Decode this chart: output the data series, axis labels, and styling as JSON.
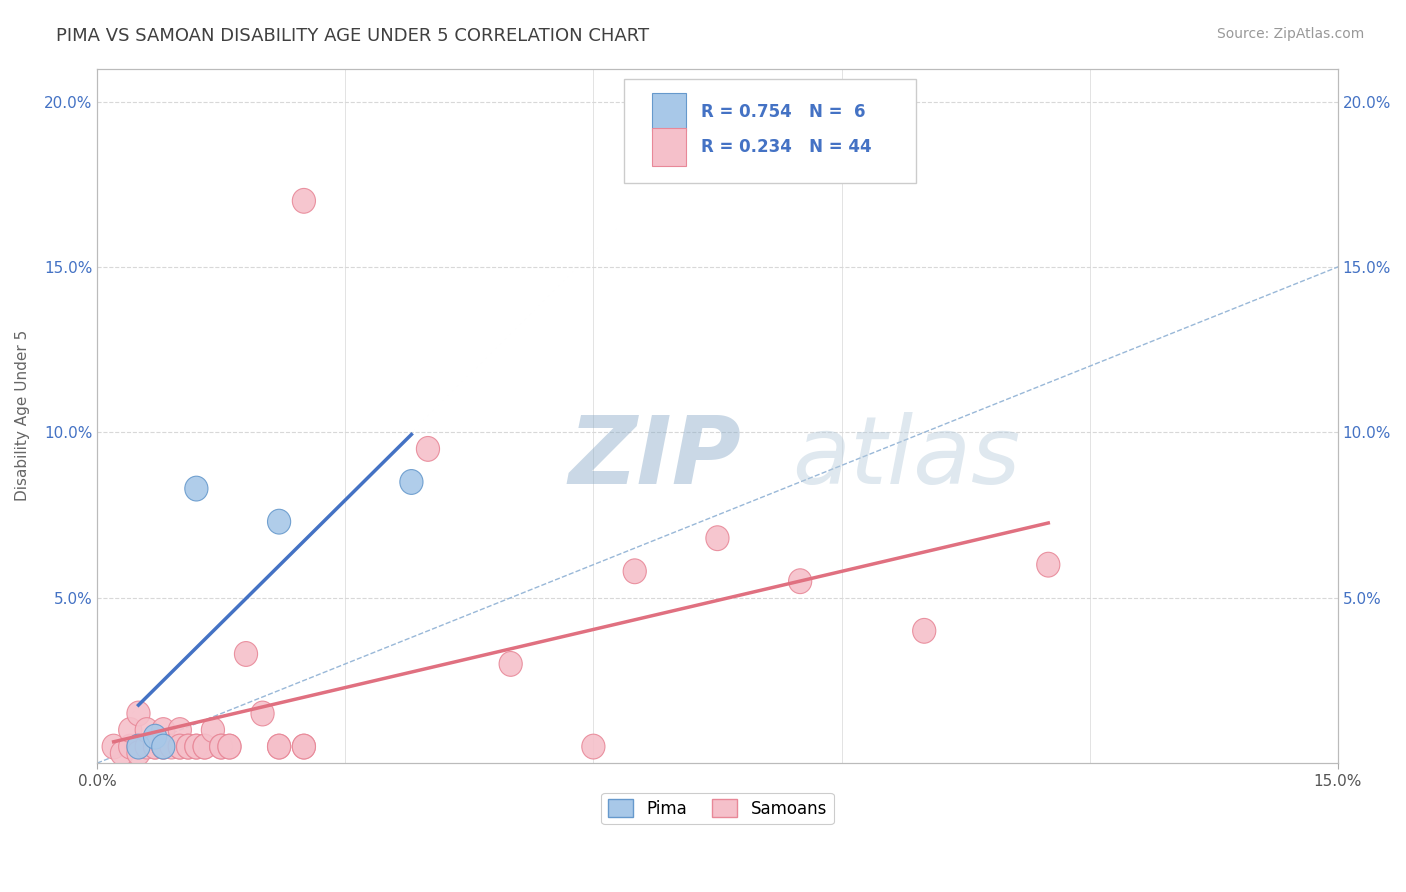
{
  "title": "PIMA VS SAMOAN DISABILITY AGE UNDER 5 CORRELATION CHART",
  "source_text": "Source: ZipAtlas.com",
  "ylabel": "Disability Age Under 5",
  "xlim": [
    0.0,
    0.15
  ],
  "ylim": [
    0.0,
    0.21
  ],
  "legend_r_pima": "R = 0.754",
  "legend_n_pima": "N =  6",
  "legend_r_samoan": "R = 0.234",
  "legend_n_samoan": "N = 44",
  "pima_color": "#a8c8e8",
  "pima_edge_color": "#6699cc",
  "samoan_color": "#f5c0ca",
  "samoan_edge_color": "#e88898",
  "pima_line_color": "#4472c4",
  "samoan_line_color": "#e07080",
  "diagonal_color": "#99b8d8",
  "grid_color": "#d8d8d8",
  "title_color": "#404040",
  "axis_label_color": "#4472c4",
  "watermark_zip_color": "#b0c8e0",
  "watermark_atlas_color": "#c8d8ea",
  "pima_points": [
    [
      0.005,
      0.005
    ],
    [
      0.007,
      0.008
    ],
    [
      0.008,
      0.005
    ],
    [
      0.012,
      0.083
    ],
    [
      0.022,
      0.073
    ],
    [
      0.038,
      0.085
    ]
  ],
  "samoan_points": [
    [
      0.002,
      0.005
    ],
    [
      0.003,
      0.003
    ],
    [
      0.004,
      0.005
    ],
    [
      0.004,
      0.01
    ],
    [
      0.005,
      0.005
    ],
    [
      0.005,
      0.003
    ],
    [
      0.005,
      0.015
    ],
    [
      0.006,
      0.005
    ],
    [
      0.006,
      0.01
    ],
    [
      0.007,
      0.005
    ],
    [
      0.007,
      0.005
    ],
    [
      0.008,
      0.005
    ],
    [
      0.008,
      0.005
    ],
    [
      0.008,
      0.01
    ],
    [
      0.009,
      0.005
    ],
    [
      0.01,
      0.005
    ],
    [
      0.01,
      0.01
    ],
    [
      0.01,
      0.005
    ],
    [
      0.011,
      0.005
    ],
    [
      0.011,
      0.005
    ],
    [
      0.012,
      0.005
    ],
    [
      0.012,
      0.005
    ],
    [
      0.013,
      0.005
    ],
    [
      0.013,
      0.005
    ],
    [
      0.014,
      0.01
    ],
    [
      0.015,
      0.005
    ],
    [
      0.015,
      0.005
    ],
    [
      0.016,
      0.005
    ],
    [
      0.016,
      0.005
    ],
    [
      0.018,
      0.033
    ],
    [
      0.02,
      0.015
    ],
    [
      0.022,
      0.005
    ],
    [
      0.022,
      0.005
    ],
    [
      0.025,
      0.005
    ],
    [
      0.025,
      0.005
    ],
    [
      0.025,
      0.17
    ],
    [
      0.04,
      0.095
    ],
    [
      0.05,
      0.03
    ],
    [
      0.06,
      0.005
    ],
    [
      0.065,
      0.058
    ],
    [
      0.075,
      0.068
    ],
    [
      0.085,
      0.055
    ],
    [
      0.1,
      0.04
    ],
    [
      0.115,
      0.06
    ]
  ]
}
